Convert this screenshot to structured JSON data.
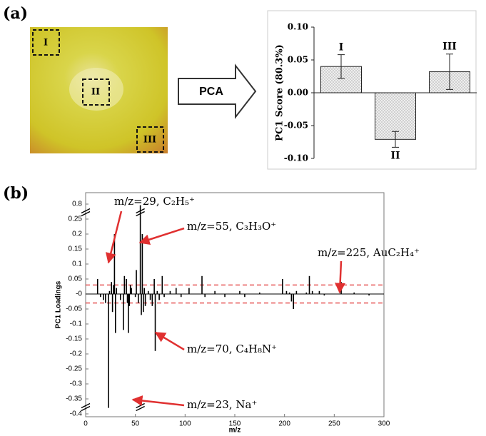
{
  "panel_labels": [
    "(a)",
    "(b)"
  ],
  "image": {
    "regions": [
      "I",
      "II",
      "III"
    ]
  },
  "arrow_label": "PCA",
  "chart_data": [
    {
      "type": "bar",
      "ylabel": "PC1 Score (80.3%)",
      "categories": [
        "I",
        "II",
        "III"
      ],
      "values": [
        0.04,
        -0.071,
        0.032
      ],
      "errors": [
        0.018,
        0.012,
        0.027
      ],
      "color": "#eeeeee",
      "ylim": [
        -0.1,
        0.1
      ],
      "yticks": [
        {
          "value": -0.1,
          "label": "-0.10"
        },
        -0.05,
        {
          "value": 0,
          "label": "0.00"
        },
        0.05,
        {
          "value": 0.1,
          "label": "0.10"
        }
      ]
    },
    {
      "type": "stem",
      "xlabel": "m/z",
      "ylabel": "PC1 Loadings",
      "x": [
        12,
        15,
        18,
        20,
        23,
        24,
        26,
        27,
        28,
        29,
        30,
        31,
        35,
        38,
        39,
        41,
        42,
        43,
        44,
        45,
        46,
        50,
        51,
        53,
        55,
        56,
        57,
        58,
        59,
        60,
        63,
        65,
        67,
        69,
        70,
        72,
        74,
        77,
        79,
        85,
        91,
        96,
        104,
        117,
        120,
        130,
        140,
        155,
        160,
        175,
        198,
        202,
        205,
        207,
        209,
        212,
        222,
        225,
        228,
        235,
        240,
        257,
        270,
        285
      ],
      "values": [
        0.05,
        -0.01,
        -0.02,
        -0.03,
        -0.38,
        0.01,
        0.04,
        -0.06,
        0.03,
        0.2,
        -0.13,
        0.02,
        -0.02,
        -0.12,
        0.06,
        0.05,
        -0.03,
        -0.13,
        -0.04,
        0.03,
        0.02,
        -0.01,
        0.08,
        -0.03,
        0.76,
        -0.07,
        0.2,
        -0.06,
        0.02,
        -0.04,
        0.01,
        -0.02,
        -0.04,
        0.05,
        -0.19,
        0.01,
        -0.02,
        0.06,
        -0.01,
        0.01,
        0.02,
        -0.01,
        0.02,
        0.06,
        -0.01,
        0.01,
        -0.01,
        0.01,
        -0.01,
        0.005,
        0.05,
        0.01,
        0.005,
        -0.025,
        -0.05,
        0.01,
        0.005,
        0.06,
        0.01,
        0.01,
        -0.005,
        0.04,
        0.005,
        -0.005
      ],
      "color": "#000000",
      "reference_lines": [
        0.03,
        -0.03
      ],
      "reference_color": "#e03030",
      "xlim": [
        0,
        300
      ],
      "xticks": [
        0,
        50,
        100,
        150,
        200,
        250,
        300
      ],
      "yticks": [
        -0.4,
        -0.35,
        -0.3,
        -0.25,
        -0.2,
        -0.15,
        -0.1,
        -0.05,
        {
          "value": 0,
          "label": "-0"
        },
        0.05,
        0.1,
        0.15,
        0.2,
        0.25,
        0.8
      ],
      "axis_break": true,
      "annotations": [
        "m/z=29, C₂H₅⁺",
        "m/z=55, C₃H₃O⁺",
        "m/z=225, AuC₂H₄⁺",
        "m/z=70, C₄H₈N⁺",
        "m/z=23, Na⁺"
      ],
      "annotation_color": "#e03030"
    }
  ]
}
